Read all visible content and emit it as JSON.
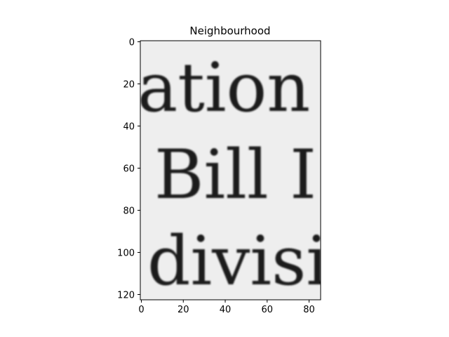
{
  "chart_data": {
    "type": "heatmap",
    "title": "Neighbourhood",
    "xlabel": "",
    "ylabel": "",
    "colormap": "gray",
    "image_shape": [
      123,
      86
    ],
    "xlim": [
      -0.5,
      85.5
    ],
    "ylim": [
      122.5,
      -0.5
    ],
    "xticks": [
      0,
      20,
      40,
      60,
      80
    ],
    "yticks": [
      0,
      20,
      40,
      60,
      80,
      100,
      120
    ],
    "image_text_lines": [
      "ation",
      "Bill I",
      "divisi"
    ],
    "grid": false,
    "background_color": "#eeeeee",
    "ink_color": "#1a1a1a"
  }
}
